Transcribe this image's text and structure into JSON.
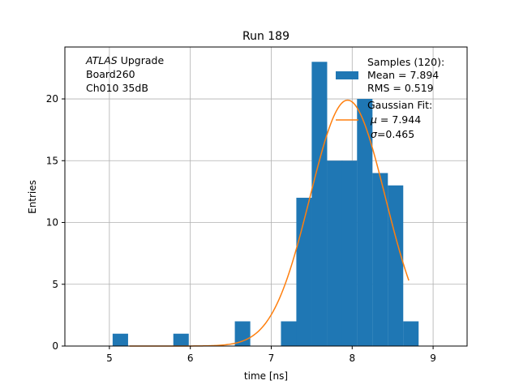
{
  "chart_data": {
    "type": "bar",
    "title": "Run 189",
    "xlabel": "time [ns]",
    "ylabel": "Entries",
    "xlim": [
      4.45,
      9.42
    ],
    "ylim": [
      0,
      24.2
    ],
    "grid": true,
    "xticks": [
      5,
      6,
      7,
      8,
      9
    ],
    "yticks": [
      0,
      5,
      10,
      15,
      20
    ],
    "bin_width": 0.188,
    "bins": [
      {
        "left": 5.04,
        "count": 1
      },
      {
        "left": 5.79,
        "count": 1
      },
      {
        "left": 6.55,
        "count": 2
      },
      {
        "left": 7.12,
        "count": 2
      },
      {
        "left": 7.31,
        "count": 12
      },
      {
        "left": 7.5,
        "count": 23
      },
      {
        "left": 7.69,
        "count": 15
      },
      {
        "left": 7.87,
        "count": 15
      },
      {
        "left": 8.06,
        "count": 20
      },
      {
        "left": 8.25,
        "count": 14
      },
      {
        "left": 8.44,
        "count": 13
      },
      {
        "left": 8.63,
        "count": 2
      }
    ],
    "fit": {
      "amplitude": 19.9,
      "mu": 7.944,
      "sigma": 0.465,
      "x_range": [
        5.25,
        8.7
      ]
    },
    "annotation": {
      "italic": "ATLAS",
      "line1_rest": " Upgrade",
      "line2": " Board260",
      "line3": " Ch010 35dB"
    },
    "legend": {
      "placement": "top-right",
      "hist_lines": [
        "Samples (120):",
        " Mean = 7.894",
        " RMS = 0.519"
      ],
      "fit_title": "Gaussian Fit:",
      "fit_mu_sym": "μ",
      "fit_mu_val": " = 7.944",
      "fit_sigma_sym": "σ",
      "fit_sigma_val": "=0.465"
    },
    "colors": {
      "bars": "#1f77b4",
      "fit": "#ff7f0e",
      "grid": "#b0b0b0",
      "axis": "#000000"
    }
  }
}
